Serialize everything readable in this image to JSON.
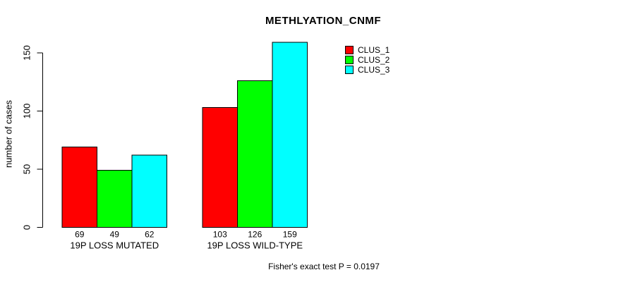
{
  "chart_data": {
    "type": "bar",
    "title": "METHLYATION_CNMF",
    "ylabel": "number of cases",
    "xlabel": "",
    "categories": [
      "19P LOSS MUTATED",
      "19P LOSS WILD-TYPE"
    ],
    "series": [
      {
        "name": "CLUS_1",
        "color": "#ff0000",
        "values": [
          69,
          103
        ]
      },
      {
        "name": "CLUS_2",
        "color": "#00ff00",
        "values": [
          49,
          126
        ]
      },
      {
        "name": "CLUS_3",
        "color": "#00ffff",
        "values": [
          62,
          159
        ]
      }
    ],
    "bar_value_labels": [
      [
        "69",
        "49",
        "62"
      ],
      [
        "103",
        "126",
        "159"
      ]
    ],
    "yticks": [
      0,
      50,
      100,
      150
    ],
    "ylim": [
      0,
      159
    ],
    "grid": false,
    "legend_position": "top-right",
    "bar_border_color": "#000000",
    "annotation": "Fisher's exact test P = 0.0197"
  }
}
